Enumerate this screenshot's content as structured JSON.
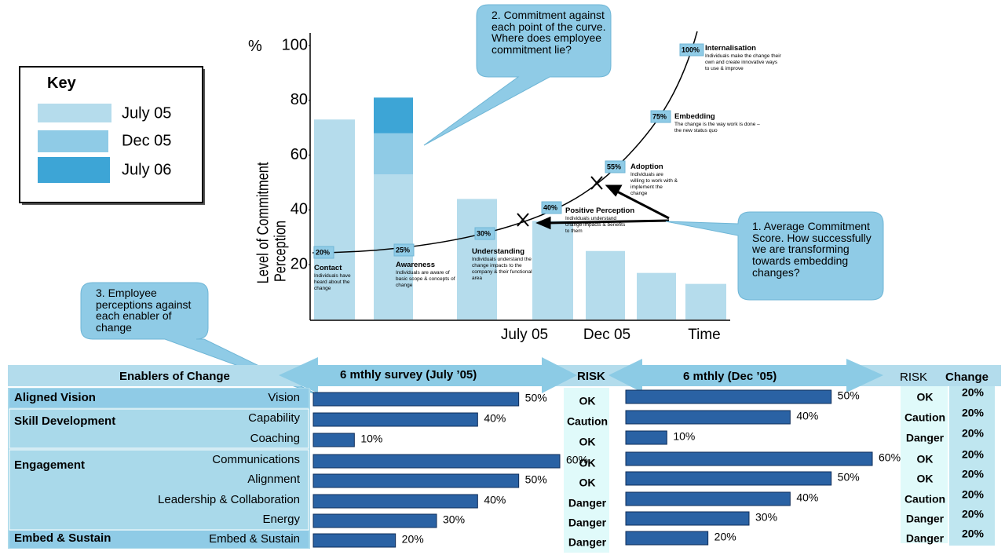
{
  "key": {
    "title": "Key"
  },
  "chart_data": {
    "type": "bar",
    "unit": "%",
    "y_label": [
      "Level of Commitment",
      "Perception"
    ],
    "ylim": [
      0,
      100
    ],
    "yticks": [
      20,
      40,
      60,
      80,
      100
    ],
    "time_labels": [
      "July 05",
      "Dec 05",
      "Time"
    ],
    "series": [
      {
        "name": "July 05",
        "color": "#b5dcec",
        "values": [
          73,
          53,
          44,
          36,
          25,
          17,
          13
        ]
      },
      {
        "name": "Dec 05",
        "color": "#8fcbe6",
        "values": [
          null,
          68,
          null,
          null,
          null,
          null,
          null
        ]
      },
      {
        "name": "July 06",
        "color": "#3da5d6",
        "values": [
          null,
          81,
          null,
          null,
          null,
          null,
          null
        ]
      }
    ]
  },
  "curve": {
    "stages": [
      {
        "pct": "20%",
        "name": "Contact",
        "text": "Individuals have heard about the change"
      },
      {
        "pct": "25%",
        "name": "Awareness",
        "text": "Individuals are aware of basic scope & concepts of change"
      },
      {
        "pct": "30%",
        "name": "Understanding",
        "text": "Individuals understand the change impacts to the company & their functional area"
      },
      {
        "pct": "40%",
        "name": "Positive Perception",
        "text": "Individuals understand change impacts & benefits to them"
      },
      {
        "pct": "55%",
        "name": "Adoption",
        "text": "Individuals are willing to work with & implement the change"
      },
      {
        "pct": "75%",
        "name": "Embedding",
        "text": "The change is the way work is done – the new status quo"
      },
      {
        "pct": "100%",
        "name": "Internalisation",
        "text": "Individuals make the change their own and create innovative ways to use & improve"
      }
    ]
  },
  "callouts": [
    "1.   Average Commitment Score. How successfully we are transforming towards embedding changes?",
    "2.   Commitment against each point of the curve.  Where does employee commitment lie?",
    "3.  Employee perceptions against each enabler of change"
  ],
  "survey": {
    "headers": {
      "enablers": "Enablers of Change",
      "survey_july": "6 mthly survey (July ’05)",
      "risk_july": "RISK",
      "survey_dec": "6 mthly (Dec ’05)",
      "risk_dec": "RISK",
      "change": "Change"
    },
    "groups": [
      {
        "name": "Aligned Vision",
        "rows": [
          {
            "enabler": "Vision",
            "july": 50,
            "july_label": "50%",
            "july_risk": "OK",
            "dec": 50,
            "dec_label": "50%",
            "dec_risk": "OK",
            "change": "20%"
          }
        ]
      },
      {
        "name": "Skill Development",
        "rows": [
          {
            "enabler": "Capability",
            "july": 40,
            "july_label": "40%",
            "july_risk": "Caution",
            "dec": 40,
            "dec_label": "40%",
            "dec_risk": "Caution",
            "change": "20%"
          },
          {
            "enabler": "Coaching",
            "july": 10,
            "july_label": "10%",
            "july_risk": "OK",
            "dec": 10,
            "dec_label": "10%",
            "dec_risk": "Danger",
            "change": "20%"
          }
        ]
      },
      {
        "name": "Engagement",
        "rows": [
          {
            "enabler": "Communications",
            "july": 60,
            "july_label": "60%",
            "july_risk": "OK",
            "dec": 60,
            "dec_label": "60%",
            "dec_risk": "OK",
            "change": "20%"
          },
          {
            "enabler": "Alignment",
            "july": 50,
            "july_label": "50%",
            "july_risk": "OK",
            "dec": 50,
            "dec_label": "50%",
            "dec_risk": "OK",
            "change": "20%"
          },
          {
            "enabler": "Leadership & Collaboration",
            "july": 40,
            "july_label": "40%",
            "july_risk": "Danger",
            "dec": 40,
            "dec_label": "40%",
            "dec_risk": "Caution",
            "change": "20%"
          },
          {
            "enabler": "Energy",
            "july": 30,
            "july_label": "30%",
            "july_risk": "Danger",
            "dec": 30,
            "dec_label": "30%",
            "dec_risk": "Danger",
            "change": "20%"
          }
        ]
      },
      {
        "name": "Embed & Sustain",
        "rows": [
          {
            "enabler": "Embed & Sustain",
            "july": 20,
            "july_label": "20%",
            "july_risk": "Danger",
            "dec": 20,
            "dec_label": "20%",
            "dec_risk": "Danger",
            "change": "20%"
          }
        ]
      }
    ]
  }
}
